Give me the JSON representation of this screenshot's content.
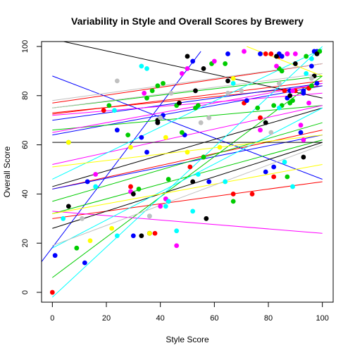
{
  "chart_data": {
    "type": "scatter",
    "title": "Variability in Style and Overall Scores by Brewery",
    "xlabel": "Style Score",
    "ylabel": "Overall Score",
    "xlim": [
      -4,
      104
    ],
    "ylim": [
      -4,
      102
    ],
    "x_ticks": [
      0,
      20,
      40,
      60,
      80,
      100
    ],
    "y_ticks": [
      0,
      20,
      40,
      60,
      80,
      100
    ],
    "grid": false,
    "legend": "none",
    "series": [
      {
        "color": "#ff0000",
        "points": [
          [
            0,
            0
          ],
          [
            19,
            74
          ],
          [
            29,
            43
          ],
          [
            38,
            24
          ],
          [
            47,
            77
          ],
          [
            51,
            51
          ],
          [
            56,
            55
          ],
          [
            67,
            40
          ],
          [
            71,
            77
          ],
          [
            74,
            40
          ],
          [
            77,
            71
          ],
          [
            79,
            97
          ],
          [
            81,
            97
          ],
          [
            82,
            47
          ],
          [
            84,
            96
          ],
          [
            85,
            96
          ],
          [
            86,
            82
          ],
          [
            87,
            97
          ],
          [
            90,
            82
          ],
          [
            95,
            83
          ]
        ],
        "lines": [
          [
            0,
            72.5,
            100,
            86
          ],
          [
            0,
            30,
            100,
            45
          ],
          [
            0,
            42,
            100,
            66
          ],
          [
            0,
            77,
            100,
            93
          ],
          [
            0,
            73,
            100,
            84
          ]
        ]
      },
      {
        "color": "#0000ff",
        "points": [
          [
            1,
            15
          ],
          [
            12,
            12
          ],
          [
            13,
            45
          ],
          [
            24,
            66
          ],
          [
            30,
            23
          ],
          [
            33,
            63
          ],
          [
            35,
            57
          ],
          [
            39,
            69
          ],
          [
            41,
            72
          ],
          [
            42,
            38
          ],
          [
            43,
            37
          ],
          [
            49,
            64
          ],
          [
            52,
            94
          ],
          [
            58,
            45
          ],
          [
            65,
            97
          ],
          [
            72,
            78
          ],
          [
            77,
            97
          ],
          [
            79,
            49
          ],
          [
            82,
            51
          ],
          [
            84,
            97
          ],
          [
            85,
            96
          ],
          [
            87,
            79
          ],
          [
            88,
            82
          ],
          [
            92,
            65
          ],
          [
            93,
            82
          ],
          [
            93,
            81
          ],
          [
            96,
            92
          ],
          [
            97,
            98
          ],
          [
            98,
            85
          ],
          [
            98,
            98
          ]
        ],
        "lines": [
          [
            -5,
            11,
            55,
            98
          ],
          [
            0,
            88,
            100,
            46
          ],
          [
            0,
            70,
            100,
            85
          ],
          [
            0,
            42,
            100,
            64
          ],
          [
            0,
            64,
            100,
            84
          ]
        ]
      },
      {
        "color": "#00cc00",
        "points": [
          [
            6,
            61
          ],
          [
            9,
            18
          ],
          [
            21,
            76
          ],
          [
            28,
            64
          ],
          [
            32,
            42
          ],
          [
            35,
            79
          ],
          [
            36,
            24
          ],
          [
            37,
            82
          ],
          [
            39,
            84
          ],
          [
            41,
            85
          ],
          [
            43,
            46
          ],
          [
            46,
            76
          ],
          [
            48,
            65
          ],
          [
            53,
            75
          ],
          [
            54,
            76
          ],
          [
            56,
            55
          ],
          [
            59,
            93
          ],
          [
            64,
            93
          ],
          [
            67,
            37
          ],
          [
            76,
            75
          ],
          [
            82,
            76
          ],
          [
            84,
            91
          ],
          [
            85,
            90
          ],
          [
            85,
            76
          ],
          [
            87,
            47
          ],
          [
            88,
            77
          ],
          [
            89,
            78
          ],
          [
            94,
            96
          ],
          [
            96,
            84
          ],
          [
            99,
            98
          ]
        ],
        "lines": [
          [
            0,
            6,
            100,
            88
          ],
          [
            0,
            32,
            100,
            62
          ],
          [
            0,
            37,
            100,
            69
          ],
          [
            0,
            75,
            100,
            88
          ],
          [
            0,
            66,
            100,
            76
          ]
        ]
      },
      {
        "color": "#ff00ff",
        "points": [
          [
            16,
            48
          ],
          [
            29,
            41
          ],
          [
            34,
            81
          ],
          [
            40,
            35
          ],
          [
            42,
            38
          ],
          [
            46,
            19
          ],
          [
            48,
            89
          ],
          [
            50,
            91
          ],
          [
            60,
            94
          ],
          [
            71,
            98
          ],
          [
            77,
            66
          ],
          [
            83,
            92
          ],
          [
            87,
            97
          ],
          [
            89,
            82
          ],
          [
            90,
            97
          ],
          [
            92,
            68
          ],
          [
            93,
            62
          ],
          [
            95,
            77
          ]
        ],
        "lines": [
          [
            0,
            52,
            100,
            76
          ],
          [
            0,
            33,
            100,
            24
          ],
          [
            0,
            65,
            100,
            85
          ],
          [
            0,
            72,
            100,
            81
          ]
        ]
      },
      {
        "color": "#000000",
        "points": [
          [
            6,
            35
          ],
          [
            30,
            40
          ],
          [
            33,
            23
          ],
          [
            36,
            24
          ],
          [
            39,
            70
          ],
          [
            39,
            69
          ],
          [
            47,
            77
          ],
          [
            50,
            96
          ],
          [
            52,
            45
          ],
          [
            53,
            82
          ],
          [
            56,
            91
          ],
          [
            57,
            30
          ],
          [
            65,
            86
          ],
          [
            79,
            69
          ],
          [
            83,
            96
          ],
          [
            88,
            80
          ],
          [
            90,
            93
          ],
          [
            93,
            55
          ],
          [
            97,
            88
          ],
          [
            98,
            97
          ]
        ],
        "lines": [
          [
            0,
            103,
            100,
            79
          ],
          [
            0,
            61,
            100,
            61
          ],
          [
            0,
            26,
            100,
            61
          ],
          [
            0,
            43,
            100,
            75
          ]
        ]
      },
      {
        "color": "#00ffff",
        "points": [
          [
            4,
            30
          ],
          [
            16,
            43
          ],
          [
            23,
            74
          ],
          [
            24,
            23
          ],
          [
            33,
            92
          ],
          [
            35,
            91
          ],
          [
            36,
            31
          ],
          [
            42,
            35
          ],
          [
            43,
            37
          ],
          [
            46,
            25
          ],
          [
            52,
            33
          ],
          [
            54,
            48
          ],
          [
            64,
            45
          ],
          [
            67,
            85
          ],
          [
            84,
            75
          ],
          [
            86,
            53
          ],
          [
            89,
            43
          ],
          [
            94,
            89
          ],
          [
            96,
            95
          ]
        ],
        "lines": [
          [
            0,
            -2,
            100,
            100
          ],
          [
            0,
            18,
            100,
            75
          ],
          [
            0,
            46,
            100,
            99
          ]
        ]
      },
      {
        "color": "#ffff00",
        "points": [
          [
            6,
            61
          ],
          [
            14,
            21
          ],
          [
            22,
            26
          ],
          [
            29,
            59
          ],
          [
            36,
            24
          ],
          [
            42,
            63
          ],
          [
            50,
            57
          ],
          [
            62,
            59
          ],
          [
            67,
            87
          ]
        ],
        "lines": [
          [
            0,
            51,
            100,
            64
          ],
          [
            72,
            100,
            100,
            88
          ],
          [
            0,
            32,
            100,
            52
          ]
        ]
      },
      {
        "color": "#c0c0c0",
        "points": [
          [
            11,
            30
          ],
          [
            24,
            86
          ],
          [
            36,
            31
          ],
          [
            40,
            71
          ],
          [
            44,
            81
          ],
          [
            55,
            69
          ],
          [
            58,
            71
          ],
          [
            65,
            81
          ],
          [
            70,
            82
          ],
          [
            81,
            65
          ],
          [
            84,
            85
          ],
          [
            96,
            87
          ]
        ],
        "lines": [
          [
            0,
            78,
            100,
            93
          ],
          [
            0,
            19,
            100,
            60
          ],
          [
            0,
            75,
            100,
            89
          ]
        ]
      }
    ]
  }
}
